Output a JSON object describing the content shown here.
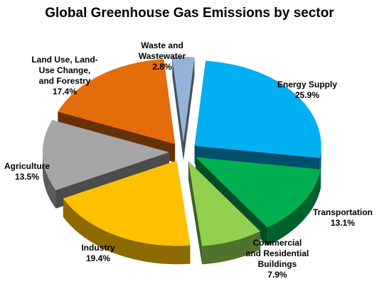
{
  "chart_data": {
    "type": "pie",
    "title": "Global Greenhouse Gas Emissions by sector",
    "exploded": true,
    "three_d": true,
    "slices": [
      {
        "label": "Energy Supply",
        "value": 25.9,
        "value_label": "25.9%",
        "color": "#00B0F0"
      },
      {
        "label": "Transportation",
        "value": 13.1,
        "value_label": "13.1%",
        "color": "#00B050"
      },
      {
        "label": "Commercial and Residential Buildings",
        "value": 7.9,
        "value_label": "7.9%",
        "color": "#92D050"
      },
      {
        "label": "Industry",
        "value": 19.4,
        "value_label": "19.4%",
        "color": "#FFC000"
      },
      {
        "label": "Agriculture",
        "value": 13.5,
        "value_label": "13.5%",
        "color": "#A6A6A6"
      },
      {
        "label": "Land Use, Land-Use Change, and Forestry",
        "value": 17.4,
        "value_label": "17.4%",
        "color": "#E46C0A"
      },
      {
        "label": "Waste and Wastewater",
        "value": 2.8,
        "value_label": "2.8%",
        "color": "#95B3D7"
      }
    ]
  }
}
